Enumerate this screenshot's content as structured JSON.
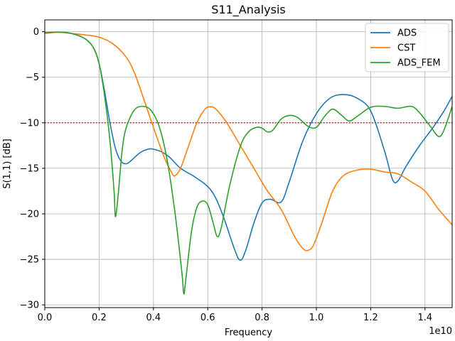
{
  "chart_data": {
    "type": "line",
    "title": "S11_Analysis",
    "xlabel": "Frequency",
    "ylabel": "S(1,1) [dB]",
    "x_scale_label": "1e10",
    "xlim": [
      0,
      1.5
    ],
    "ylim": [
      -30.3,
      1.3
    ],
    "x_ticks": [
      0.0,
      0.2,
      0.4,
      0.6,
      0.8,
      1.0,
      1.2,
      1.4
    ],
    "x_tick_labels": [
      "0.0",
      "0.2",
      "0.4",
      "0.6",
      "0.8",
      "1.0",
      "1.2",
      "1.4"
    ],
    "y_ticks": [
      0,
      -5,
      -10,
      -15,
      -20,
      -25,
      -30
    ],
    "y_tick_labels": [
      "0",
      "−5",
      "−10",
      "−15",
      "−20",
      "−25",
      "−30"
    ],
    "grid": true,
    "legend_position": "top-right",
    "reference_line": {
      "y": -10,
      "color": "#d62728",
      "style": "dotted"
    },
    "series": [
      {
        "name": "ADS",
        "color": "#1f77b4",
        "points": [
          [
            0,
            -0.1
          ],
          [
            0.05,
            -0.05
          ],
          [
            0.1,
            -0.2
          ],
          [
            0.15,
            -0.8
          ],
          [
            0.18,
            -1.8
          ],
          [
            0.2,
            -3.5
          ],
          [
            0.22,
            -6.5
          ],
          [
            0.24,
            -10
          ],
          [
            0.26,
            -12.8
          ],
          [
            0.28,
            -14.2
          ],
          [
            0.3,
            -14.5
          ],
          [
            0.32,
            -14.1
          ],
          [
            0.35,
            -13.3
          ],
          [
            0.38,
            -12.9
          ],
          [
            0.4,
            -12.9
          ],
          [
            0.43,
            -13.2
          ],
          [
            0.46,
            -13.8
          ],
          [
            0.5,
            -15
          ],
          [
            0.55,
            -15.9
          ],
          [
            0.6,
            -17
          ],
          [
            0.63,
            -18.3
          ],
          [
            0.66,
            -20.5
          ],
          [
            0.7,
            -24
          ],
          [
            0.72,
            -25.1
          ],
          [
            0.74,
            -24
          ],
          [
            0.77,
            -21
          ],
          [
            0.8,
            -18.8
          ],
          [
            0.83,
            -18.4
          ],
          [
            0.87,
            -18.7
          ],
          [
            0.9,
            -16.5
          ],
          [
            0.95,
            -12
          ],
          [
            1.0,
            -9
          ],
          [
            1.05,
            -7.3
          ],
          [
            1.1,
            -6.9
          ],
          [
            1.15,
            -7.3
          ],
          [
            1.2,
            -8.7
          ],
          [
            1.25,
            -13
          ],
          [
            1.28,
            -16.2
          ],
          [
            1.3,
            -16.4
          ],
          [
            1.33,
            -14.8
          ],
          [
            1.38,
            -12.5
          ],
          [
            1.43,
            -10.5
          ],
          [
            1.47,
            -8.7
          ],
          [
            1.5,
            -7.1
          ]
        ]
      },
      {
        "name": "CST",
        "color": "#ff7f0e",
        "points": [
          [
            0,
            -0.2
          ],
          [
            0.05,
            -0.05
          ],
          [
            0.1,
            -0.2
          ],
          [
            0.15,
            -0.35
          ],
          [
            0.2,
            -0.6
          ],
          [
            0.25,
            -1.3
          ],
          [
            0.3,
            -2.8
          ],
          [
            0.33,
            -4.5
          ],
          [
            0.36,
            -7
          ],
          [
            0.4,
            -10.5
          ],
          [
            0.44,
            -13.8
          ],
          [
            0.47,
            -15.6
          ],
          [
            0.48,
            -15.8
          ],
          [
            0.5,
            -15
          ],
          [
            0.53,
            -12.5
          ],
          [
            0.56,
            -10
          ],
          [
            0.59,
            -8.5
          ],
          [
            0.61,
            -8.25
          ],
          [
            0.63,
            -8.5
          ],
          [
            0.67,
            -10
          ],
          [
            0.72,
            -12.5
          ],
          [
            0.77,
            -15
          ],
          [
            0.82,
            -17.5
          ],
          [
            0.87,
            -19.5
          ],
          [
            0.92,
            -22.5
          ],
          [
            0.95,
            -23.8
          ],
          [
            0.97,
            -24
          ],
          [
            0.99,
            -23.4
          ],
          [
            1.02,
            -21
          ],
          [
            1.06,
            -17.5
          ],
          [
            1.1,
            -15.8
          ],
          [
            1.15,
            -15.2
          ],
          [
            1.2,
            -15.1
          ],
          [
            1.25,
            -15.4
          ],
          [
            1.3,
            -15.6
          ],
          [
            1.35,
            -16.5
          ],
          [
            1.4,
            -17.5
          ],
          [
            1.45,
            -19.5
          ],
          [
            1.5,
            -21.2
          ]
        ]
      },
      {
        "name": "ADS_FEM",
        "color": "#2ca02c",
        "points": [
          [
            0,
            -0.1
          ],
          [
            0.05,
            -0.05
          ],
          [
            0.1,
            -0.2
          ],
          [
            0.15,
            -0.8
          ],
          [
            0.18,
            -1.8
          ],
          [
            0.2,
            -3.5
          ],
          [
            0.22,
            -7
          ],
          [
            0.24,
            -12
          ],
          [
            0.255,
            -17.5
          ],
          [
            0.26,
            -20.3
          ],
          [
            0.27,
            -18
          ],
          [
            0.285,
            -13
          ],
          [
            0.3,
            -10.5
          ],
          [
            0.33,
            -8.6
          ],
          [
            0.36,
            -8.2
          ],
          [
            0.39,
            -8.6
          ],
          [
            0.42,
            -10.3
          ],
          [
            0.45,
            -14
          ],
          [
            0.48,
            -20
          ],
          [
            0.505,
            -26.5
          ],
          [
            0.512,
            -28.8
          ],
          [
            0.52,
            -27
          ],
          [
            0.54,
            -22
          ],
          [
            0.56,
            -19.3
          ],
          [
            0.58,
            -18.6
          ],
          [
            0.6,
            -19
          ],
          [
            0.62,
            -21
          ],
          [
            0.635,
            -22.5
          ],
          [
            0.65,
            -21.5
          ],
          [
            0.68,
            -17
          ],
          [
            0.72,
            -12.6
          ],
          [
            0.75,
            -11
          ],
          [
            0.78,
            -10.5
          ],
          [
            0.8,
            -10.6
          ],
          [
            0.82,
            -11
          ],
          [
            0.84,
            -10.8
          ],
          [
            0.87,
            -9.6
          ],
          [
            0.9,
            -9.2
          ],
          [
            0.93,
            -9.4
          ],
          [
            0.97,
            -10.4
          ],
          [
            1.0,
            -10.5
          ],
          [
            1.03,
            -9.3
          ],
          [
            1.06,
            -8.5
          ],
          [
            1.09,
            -9.1
          ],
          [
            1.12,
            -9.8
          ],
          [
            1.15,
            -9.3
          ],
          [
            1.2,
            -8.3
          ],
          [
            1.25,
            -8.2
          ],
          [
            1.3,
            -8.4
          ],
          [
            1.35,
            -8.2
          ],
          [
            1.38,
            -8.9
          ],
          [
            1.42,
            -10.4
          ],
          [
            1.45,
            -11.5
          ],
          [
            1.47,
            -10.8
          ],
          [
            1.5,
            -8.2
          ]
        ]
      }
    ]
  }
}
